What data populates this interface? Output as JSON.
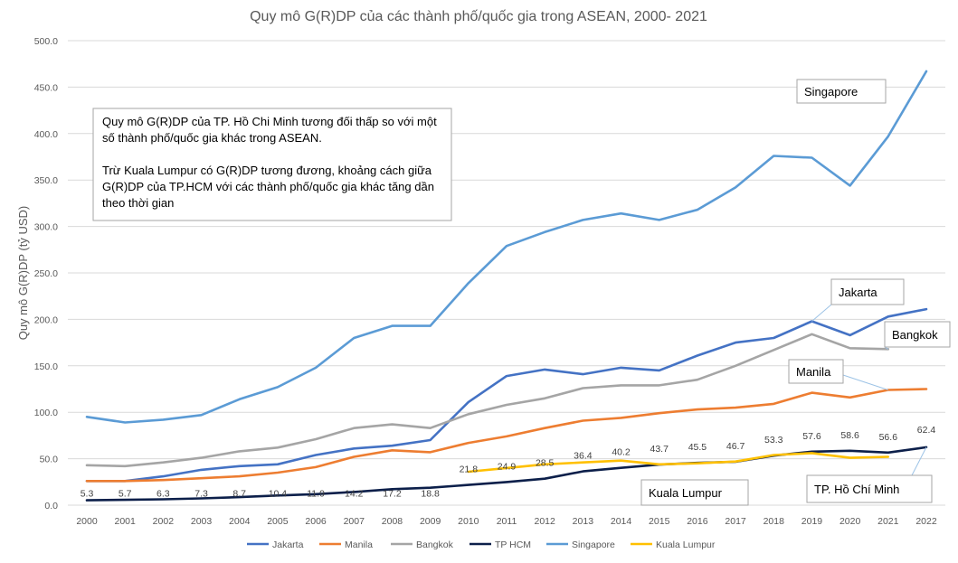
{
  "chart_data": {
    "type": "line",
    "title": "Quy mô G(R)DP của các thành phố/quốc gia trong ASEAN, 2000- 2021",
    "ylabel": "Quy mô G(R)DP (tỷ USD)",
    "xlabel": "",
    "ylim": [
      0,
      500
    ],
    "yticks": [
      "0.0",
      "50.0",
      "100.0",
      "150.0",
      "200.0",
      "250.0",
      "300.0",
      "350.0",
      "400.0",
      "450.0",
      "500.0"
    ],
    "categories": [
      "2000",
      "2001",
      "2002",
      "2003",
      "2004",
      "2005",
      "2006",
      "2007",
      "2008",
      "2009",
      "2010",
      "2011",
      "2012",
      "2013",
      "2014",
      "2015",
      "2016",
      "2017",
      "2018",
      "2019",
      "2020",
      "2021",
      "2022"
    ],
    "grid": "horizontal",
    "legend_position": "bottom",
    "series": [
      {
        "name": "Jakarta",
        "color": "#4472C4",
        "values": [
          26,
          26,
          31,
          38,
          42,
          44,
          54,
          61,
          64,
          70,
          111,
          139,
          146,
          141,
          148,
          145,
          161,
          175,
          180,
          198,
          183,
          203,
          211
        ]
      },
      {
        "name": "Manila",
        "color": "#ED7D31",
        "values": [
          26,
          26,
          27,
          29,
          31,
          35,
          41,
          52,
          59,
          57,
          67,
          74,
          83,
          91,
          94,
          99,
          103,
          105,
          109,
          121,
          116,
          124,
          125
        ]
      },
      {
        "name": "Bangkok",
        "color": "#A5A5A5",
        "values": [
          43,
          42,
          46,
          51,
          58,
          62,
          71,
          83,
          87,
          83,
          98,
          108,
          115,
          126,
          129,
          129,
          135,
          150,
          167,
          184,
          169,
          168,
          null
        ]
      },
      {
        "name": "TP HCM",
        "color": "#0C1F4A",
        "values": [
          5.3,
          5.7,
          6.3,
          7.3,
          8.7,
          10.4,
          11.9,
          14.2,
          17.2,
          18.8,
          21.8,
          24.9,
          28.5,
          36.4,
          40.2,
          43.7,
          45.5,
          46.7,
          53.3,
          57.6,
          58.6,
          56.6,
          62.4
        ]
      },
      {
        "name": "Singapore",
        "color": "#5B9BD5",
        "values": [
          95,
          89,
          92,
          97,
          114,
          127,
          148,
          180,
          193,
          193,
          239,
          279,
          294,
          307,
          314,
          307,
          318,
          342,
          376,
          374,
          344,
          397,
          467
        ]
      },
      {
        "name": "Kuala Lumpur",
        "color": "#FFC000",
        "values": [
          null,
          null,
          null,
          null,
          null,
          null,
          null,
          null,
          null,
          null,
          36,
          40,
          44,
          46,
          48,
          44,
          45,
          47,
          54,
          56,
          51,
          52,
          null
        ]
      }
    ],
    "data_labels": {
      "series": "TP HCM",
      "labels": [
        "5.3",
        "5.7",
        "6.3",
        "7.3",
        "8.7",
        "10.4",
        "11.9",
        "14.2",
        "17.2",
        "18.8",
        "21.8",
        "24.9",
        "28.5",
        "36.4",
        "40.2",
        "43.7",
        "45.5",
        "46.7",
        "53.3",
        "57.6",
        "58.6",
        "56.6",
        "62.4"
      ]
    },
    "callouts": [
      {
        "text": "Singapore",
        "series": "Singapore"
      },
      {
        "text": "Jakarta",
        "series": "Jakarta"
      },
      {
        "text": "Bangkok",
        "series": "Bangkok"
      },
      {
        "text": "Manila",
        "series": "Manila"
      },
      {
        "text": "Kuala Lumpur",
        "series": "Kuala Lumpur"
      },
      {
        "text": "TP. Hồ Chí Minh",
        "series": "TP HCM"
      }
    ],
    "note": {
      "lines": [
        "Quy mô G(R)DP của TP. Hồ Chi Minh tương đối thấp so với một",
        "số thành phố/quốc gia khác trong ASEAN.",
        "",
        "Trừ Kuala Lumpur có G(R)DP tương đương, khoảng cách giữa",
        "G(R)DP của TP.HCM với các thành phố/quốc gia khác tăng dần",
        "theo thời gian"
      ]
    }
  }
}
